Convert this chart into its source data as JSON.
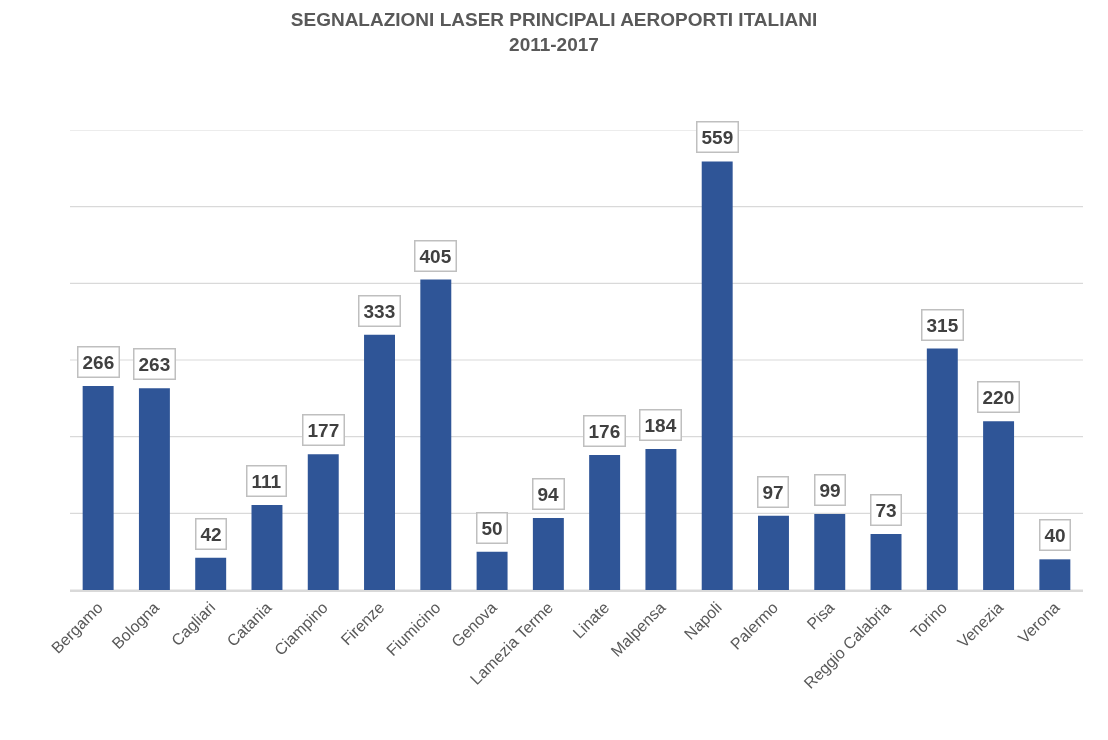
{
  "chart_data": {
    "type": "bar",
    "title": "SEGNALAZIONI LASER PRINCIPALI AEROPORTI ITALIANI\n2011-2017",
    "categories": [
      "Bergamo",
      "Bologna",
      "Cagliari",
      "Catania",
      "Ciampino",
      "Firenze",
      "Fiumicino",
      "Genova",
      "Lamezia Terme",
      "Linate",
      "Malpensa",
      "Napoli",
      "Palermo",
      "Pisa",
      "Reggio Calabria",
      "Torino",
      "Venezia",
      "Verona"
    ],
    "values": [
      266,
      263,
      42,
      111,
      177,
      333,
      405,
      50,
      94,
      176,
      184,
      559,
      97,
      99,
      73,
      315,
      220,
      40
    ],
    "color": "#2f5597",
    "ylim": [
      0,
      600
    ],
    "yticks": [
      {
        "value": 0,
        "label": null
      },
      {
        "value": 100,
        "label": null
      },
      {
        "value": 200,
        "label": null
      },
      {
        "value": 300,
        "label": null
      },
      {
        "value": 400,
        "label": null
      },
      {
        "value": 500,
        "label": null
      },
      {
        "value": 600,
        "label": null
      }
    ],
    "tick_labels": "x",
    "grid": "y",
    "data_labels": true
  }
}
